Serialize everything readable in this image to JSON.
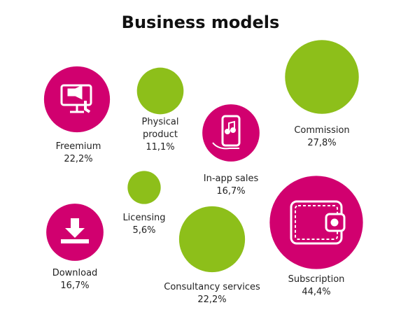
{
  "chart_data": {
    "type": "bubble",
    "title": "Business models",
    "categories": [
      "Freemium",
      "Physical product",
      "Commission",
      "In-app sales",
      "Licensing",
      "Download",
      "Consultancy services",
      "Subscription"
    ],
    "values": [
      22.2,
      11.1,
      27.8,
      16.7,
      5.6,
      16.7,
      22.2,
      44.4
    ],
    "value_labels": [
      "22,2%",
      "11,1%",
      "27,8%",
      "16,7%",
      "5,6%",
      "16,7%",
      "22,2%",
      "44,4%"
    ],
    "colors": [
      "#d1006f",
      "#8dbf1a",
      "#8dbf1a",
      "#d1006f",
      "#8dbf1a",
      "#d1006f",
      "#8dbf1a",
      "#d1006f"
    ]
  }
}
